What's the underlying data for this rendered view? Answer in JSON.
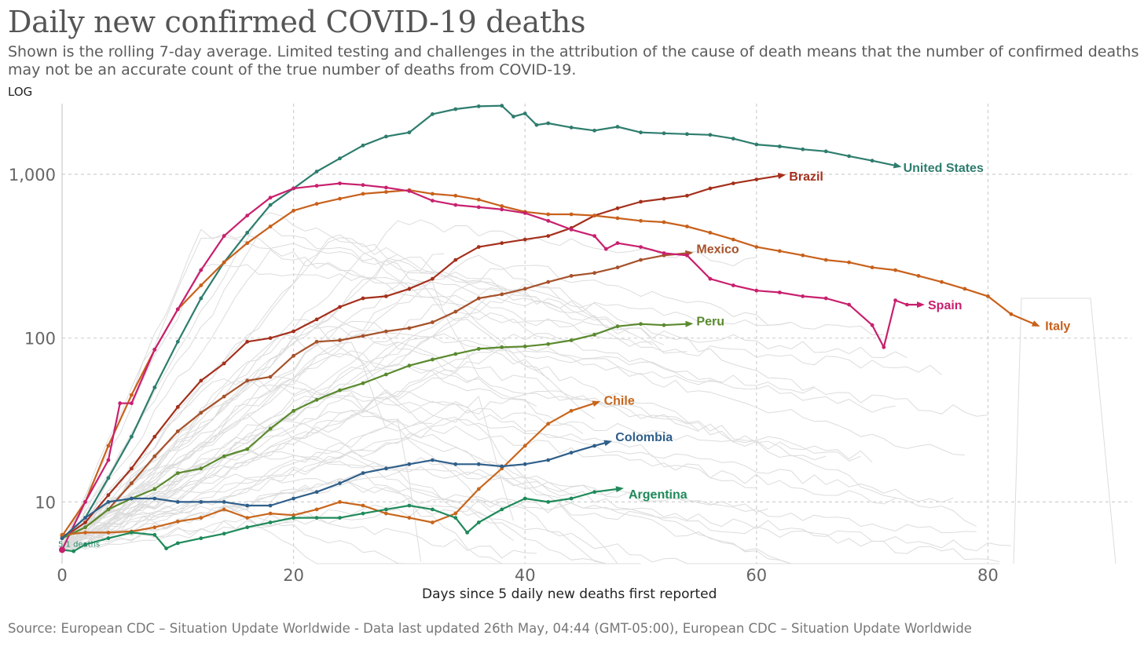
{
  "title": "Daily new confirmed COVID-19 deaths",
  "subtitle": "Shown is the rolling 7-day average. Limited testing and challenges in the attribution of the cause of death means that the number of confirmed deaths may not be an accurate count of the true number of deaths from COVID-19.",
  "scale_label": "LOG",
  "source": "Source: European CDC – Situation Update Worldwide - Data last updated 26th May, 04:44 (GMT-05:00), European CDC – Situation Update Worldwide",
  "start_label": "5.1 deaths",
  "chart_data": {
    "type": "line",
    "title": "Daily new confirmed COVID-19 deaths",
    "xlabel": "Days since 5 daily new deaths first reported",
    "ylabel": "",
    "yscale": "log",
    "xlim": [
      0,
      92
    ],
    "ylim": [
      4.2,
      2700
    ],
    "x_ticks": [
      0,
      20,
      40,
      60,
      80
    ],
    "x_tick_labels": [
      "0",
      "20",
      "40",
      "60",
      "80"
    ],
    "y_ticks": [
      10,
      100,
      1000
    ],
    "y_tick_labels": [
      "10",
      "100",
      "1,000"
    ],
    "grid": "dashed",
    "series": [
      {
        "name": "United States",
        "color": "#2e7d6e",
        "x": [
          0,
          2,
          4,
          6,
          8,
          10,
          12,
          14,
          16,
          18,
          20,
          22,
          24,
          26,
          28,
          30,
          32,
          34,
          36,
          38,
          39,
          40,
          41,
          42,
          44,
          46,
          48,
          50,
          52,
          54,
          56,
          58,
          60,
          62,
          64,
          66,
          68,
          70,
          72
        ],
        "y": [
          6,
          8,
          14,
          25,
          50,
          95,
          175,
          290,
          440,
          650,
          820,
          1040,
          1250,
          1500,
          1700,
          1800,
          2330,
          2500,
          2600,
          2620,
          2250,
          2350,
          2000,
          2050,
          1930,
          1850,
          1950,
          1800,
          1780,
          1760,
          1740,
          1650,
          1520,
          1480,
          1420,
          1380,
          1290,
          1210,
          1130
        ]
      },
      {
        "name": "Brazil",
        "color": "#a4301c",
        "x": [
          0,
          2,
          4,
          6,
          8,
          10,
          12,
          14,
          16,
          18,
          20,
          22,
          24,
          26,
          28,
          30,
          32,
          34,
          36,
          38,
          40,
          42,
          44,
          46,
          48,
          50,
          52,
          54,
          56,
          58,
          60,
          62
        ],
        "y": [
          6,
          7.5,
          11,
          16,
          25,
          38,
          55,
          70,
          95,
          100,
          110,
          130,
          155,
          175,
          180,
          200,
          230,
          300,
          360,
          380,
          400,
          420,
          470,
          560,
          620,
          680,
          710,
          740,
          820,
          880,
          930,
          980
        ]
      },
      {
        "name": "Mexico",
        "color": "#a6522b",
        "x": [
          0,
          2,
          4,
          6,
          8,
          10,
          12,
          14,
          16,
          18,
          20,
          22,
          24,
          26,
          28,
          30,
          32,
          34,
          36,
          38,
          40,
          42,
          44,
          46,
          48,
          50,
          52,
          54
        ],
        "y": [
          6,
          7,
          9,
          13,
          19,
          27,
          35,
          44,
          55,
          58,
          78,
          95,
          97,
          103,
          110,
          115,
          125,
          145,
          175,
          185,
          200,
          220,
          240,
          250,
          270,
          300,
          320,
          330
        ]
      },
      {
        "name": "Italy",
        "color": "#c8611c",
        "x": [
          0,
          2,
          4,
          6,
          8,
          10,
          12,
          14,
          16,
          18,
          20,
          22,
          24,
          26,
          28,
          30,
          32,
          34,
          36,
          38,
          40,
          42,
          44,
          46,
          48,
          50,
          52,
          54,
          56,
          58,
          60,
          62,
          64,
          66,
          68,
          70,
          72,
          74,
          76,
          78,
          80,
          82,
          84
        ],
        "y": [
          6.2,
          10,
          22,
          45,
          85,
          150,
          210,
          290,
          380,
          480,
          600,
          660,
          710,
          760,
          780,
          800,
          760,
          740,
          700,
          640,
          590,
          570,
          570,
          560,
          540,
          520,
          510,
          480,
          440,
          400,
          360,
          340,
          320,
          300,
          290,
          270,
          260,
          240,
          220,
          200,
          180,
          140,
          122
        ]
      },
      {
        "name": "Spain",
        "color": "#c8206e",
        "x": [
          0,
          2,
          4,
          5,
          6,
          8,
          10,
          12,
          14,
          16,
          18,
          20,
          22,
          24,
          26,
          28,
          30,
          32,
          34,
          36,
          38,
          40,
          42,
          44,
          46,
          47,
          48,
          50,
          52,
          54,
          56,
          58,
          60,
          62,
          64,
          66,
          68,
          70,
          71,
          72,
          73,
          74
        ],
        "y": [
          5.1,
          10,
          18,
          40,
          40,
          85,
          150,
          260,
          420,
          560,
          720,
          820,
          850,
          880,
          860,
          830,
          790,
          690,
          650,
          630,
          610,
          580,
          520,
          460,
          420,
          350,
          380,
          360,
          330,
          320,
          230,
          210,
          195,
          190,
          180,
          175,
          160,
          120,
          88,
          170,
          160,
          160
        ]
      },
      {
        "name": "Peru",
        "color": "#5a8a2e",
        "x": [
          0,
          2,
          4,
          6,
          8,
          10,
          12,
          14,
          16,
          18,
          20,
          22,
          24,
          26,
          28,
          30,
          32,
          34,
          36,
          38,
          40,
          42,
          44,
          46,
          48,
          50,
          52,
          54
        ],
        "y": [
          6,
          7,
          9,
          10.5,
          12,
          15,
          16,
          19,
          21,
          28,
          36,
          42,
          48,
          53,
          60,
          68,
          74,
          80,
          86,
          88,
          89,
          92,
          97,
          105,
          118,
          122,
          120,
          122
        ]
      },
      {
        "name": "Chile",
        "color": "#c8661c",
        "x": [
          0,
          2,
          4,
          6,
          8,
          10,
          12,
          14,
          16,
          18,
          20,
          22,
          24,
          26,
          28,
          30,
          32,
          34,
          36,
          38,
          40,
          42,
          44,
          46
        ],
        "y": [
          6.3,
          6.5,
          6.5,
          6.6,
          7,
          7.6,
          8,
          9,
          8,
          8.5,
          8.3,
          9,
          10,
          9.5,
          8.5,
          8,
          7.5,
          8.5,
          12,
          16,
          22,
          30,
          36,
          40
        ]
      },
      {
        "name": "Colombia",
        "color": "#2f5f8a",
        "x": [
          0,
          2,
          4,
          6,
          8,
          10,
          12,
          14,
          16,
          18,
          20,
          22,
          24,
          26,
          28,
          30,
          32,
          34,
          36,
          38,
          40,
          42,
          44,
          46,
          47
        ],
        "y": [
          6,
          8,
          10,
          10.5,
          10.5,
          10,
          10,
          10,
          9.5,
          9.5,
          10.5,
          11.5,
          13,
          15,
          16,
          17,
          18,
          17,
          17,
          16.5,
          17,
          18,
          20,
          22,
          23
        ]
      },
      {
        "name": "Argentina",
        "color": "#1f8a5a",
        "x": [
          0,
          1,
          2,
          4,
          6,
          8,
          9,
          10,
          12,
          14,
          16,
          18,
          20,
          22,
          24,
          26,
          28,
          30,
          32,
          34,
          35,
          36,
          38,
          40,
          42,
          44,
          46,
          48
        ],
        "y": [
          5.1,
          5,
          5.5,
          6,
          6.5,
          6.3,
          5.2,
          5.6,
          6,
          6.4,
          7,
          7.5,
          8,
          8,
          8,
          8.5,
          9,
          9.5,
          9,
          8,
          6.5,
          7.5,
          9,
          10.5,
          10,
          10.5,
          11.5,
          12
        ]
      }
    ],
    "series_labels": [
      "United States",
      "Brazil",
      "Mexico",
      "Italy",
      "Spain",
      "Peru",
      "Chile",
      "Colombia",
      "Argentina"
    ]
  }
}
